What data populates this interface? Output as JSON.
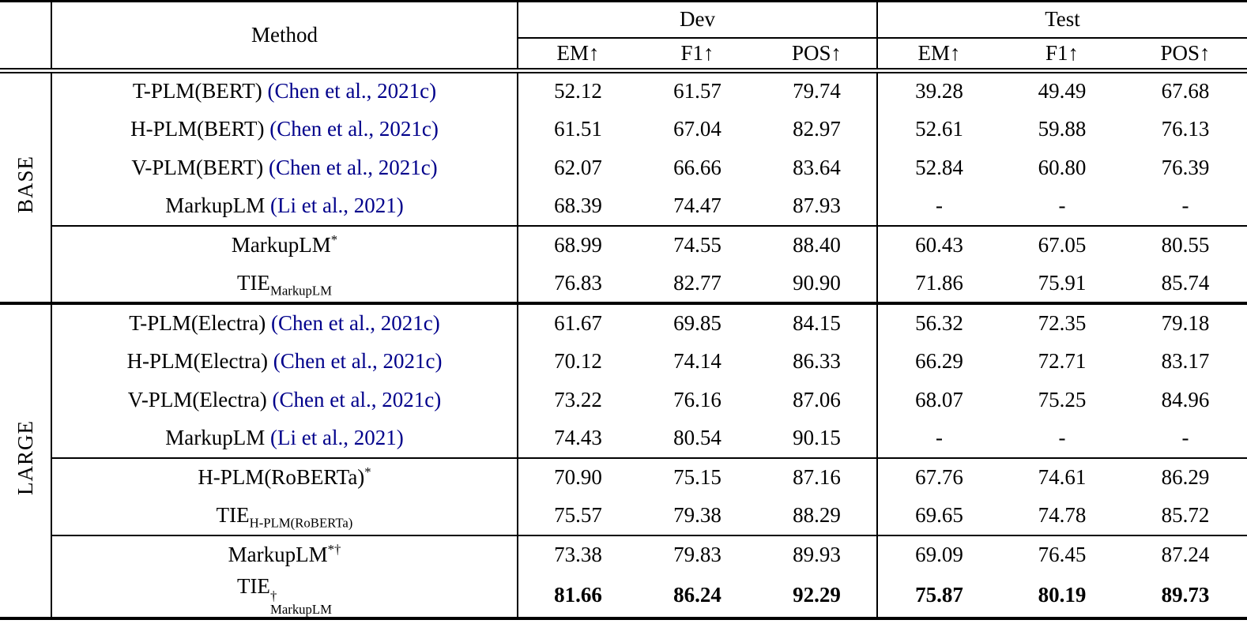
{
  "table": {
    "method_header": "Method",
    "col_groups": [
      {
        "label": "Dev",
        "subcols": [
          "EM↑",
          "F1↑",
          "POS↑"
        ]
      },
      {
        "label": "Test",
        "subcols": [
          "EM↑",
          "F1↑",
          "POS↑"
        ]
      }
    ],
    "colors": {
      "citation": "#00008B",
      "text": "#000000",
      "rule": "#000000"
    },
    "sections": [
      {
        "label": "BASE",
        "rows": [
          {
            "method": [
              {
                "type": "text",
                "text": "T-PLM(BERT) "
              },
              {
                "type": "cite",
                "text": "(Chen et al., 2021c)"
              }
            ],
            "values": [
              "52.12",
              "61.57",
              "79.74",
              "39.28",
              "49.49",
              "67.68"
            ],
            "bold": false,
            "rule_above": false
          },
          {
            "method": [
              {
                "type": "text",
                "text": "H-PLM(BERT) "
              },
              {
                "type": "cite",
                "text": "(Chen et al., 2021c)"
              }
            ],
            "values": [
              "61.51",
              "67.04",
              "82.97",
              "52.61",
              "59.88",
              "76.13"
            ],
            "bold": false,
            "rule_above": false
          },
          {
            "method": [
              {
                "type": "text",
                "text": "V-PLM(BERT) "
              },
              {
                "type": "cite",
                "text": "(Chen et al., 2021c)"
              }
            ],
            "values": [
              "62.07",
              "66.66",
              "83.64",
              "52.84",
              "60.80",
              "76.39"
            ],
            "bold": false,
            "rule_above": false
          },
          {
            "method": [
              {
                "type": "text",
                "text": "MarkupLM "
              },
              {
                "type": "cite",
                "text": "(Li et al., 2021)"
              }
            ],
            "values": [
              "68.39",
              "74.47",
              "87.93",
              "-",
              "-",
              "-"
            ],
            "bold": false,
            "rule_above": false
          },
          {
            "method": [
              {
                "type": "text",
                "text": "MarkupLM"
              },
              {
                "type": "sup",
                "text": "*"
              }
            ],
            "values": [
              "68.99",
              "74.55",
              "88.40",
              "60.43",
              "67.05",
              "80.55"
            ],
            "bold": false,
            "rule_above": true
          },
          {
            "method": [
              {
                "type": "text",
                "text": "TIE"
              },
              {
                "type": "sub",
                "text": "MarkupLM"
              }
            ],
            "values": [
              "76.83",
              "82.77",
              "90.90",
              "71.86",
              "75.91",
              "85.74"
            ],
            "bold": false,
            "rule_above": false
          }
        ]
      },
      {
        "label": "LARGE",
        "rows": [
          {
            "method": [
              {
                "type": "text",
                "text": "T-PLM(Electra) "
              },
              {
                "type": "cite",
                "text": "(Chen et al., 2021c)"
              }
            ],
            "values": [
              "61.67",
              "69.85",
              "84.15",
              "56.32",
              "72.35",
              "79.18"
            ],
            "bold": false,
            "rule_above": false
          },
          {
            "method": [
              {
                "type": "text",
                "text": "H-PLM(Electra) "
              },
              {
                "type": "cite",
                "text": "(Chen et al., 2021c)"
              }
            ],
            "values": [
              "70.12",
              "74.14",
              "86.33",
              "66.29",
              "72.71",
              "83.17"
            ],
            "bold": false,
            "rule_above": false
          },
          {
            "method": [
              {
                "type": "text",
                "text": "V-PLM(Electra) "
              },
              {
                "type": "cite",
                "text": "(Chen et al., 2021c)"
              }
            ],
            "values": [
              "73.22",
              "76.16",
              "87.06",
              "68.07",
              "75.25",
              "84.96"
            ],
            "bold": false,
            "rule_above": false
          },
          {
            "method": [
              {
                "type": "text",
                "text": "MarkupLM "
              },
              {
                "type": "cite",
                "text": "(Li et al., 2021)"
              }
            ],
            "values": [
              "74.43",
              "80.54",
              "90.15",
              "-",
              "-",
              "-"
            ],
            "bold": false,
            "rule_above": false
          },
          {
            "method": [
              {
                "type": "text",
                "text": "H-PLM(RoBERTa)"
              },
              {
                "type": "sup",
                "text": "*"
              }
            ],
            "values": [
              "70.90",
              "75.15",
              "87.16",
              "67.76",
              "74.61",
              "86.29"
            ],
            "bold": false,
            "rule_above": true
          },
          {
            "method": [
              {
                "type": "text",
                "text": "TIE"
              },
              {
                "type": "sub",
                "text": "H-PLM(RoBERTa)"
              }
            ],
            "values": [
              "75.57",
              "79.38",
              "88.29",
              "69.65",
              "74.78",
              "85.72"
            ],
            "bold": false,
            "rule_above": false
          },
          {
            "method": [
              {
                "type": "text",
                "text": "MarkupLM"
              },
              {
                "type": "sup",
                "text": "*†"
              }
            ],
            "values": [
              "73.38",
              "79.83",
              "89.93",
              "69.09",
              "76.45",
              "87.24"
            ],
            "bold": false,
            "rule_above": true
          },
          {
            "method": [
              {
                "type": "text",
                "text": "TIE"
              },
              {
                "type": "supsub",
                "sup": "†",
                "sub": "MarkupLM"
              }
            ],
            "values": [
              "81.66",
              "86.24",
              "92.29",
              "75.87",
              "80.19",
              "89.73"
            ],
            "bold": true,
            "rule_above": false
          }
        ]
      }
    ]
  }
}
